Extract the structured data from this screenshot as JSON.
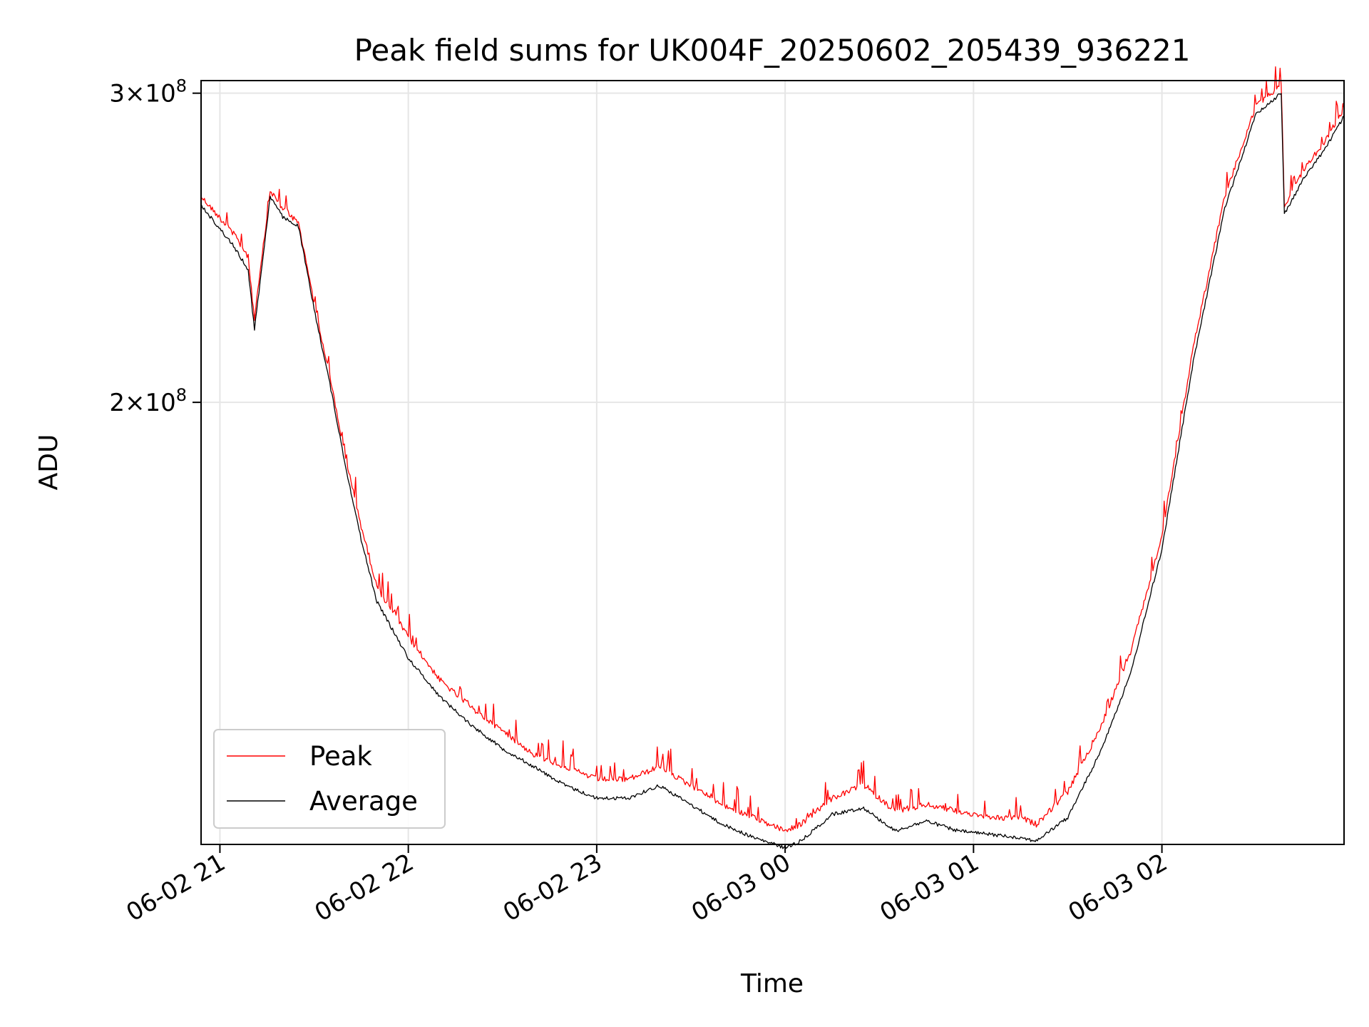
{
  "chart_data": {
    "type": "line",
    "title": "Peak field sums for UK004F_20250602_205439_936221",
    "xlabel": "Time",
    "ylabel": "ADU",
    "x_ticks": [
      "06-02 21",
      "06-02 22",
      "06-02 23",
      "06-03 00",
      "06-03 01",
      "06-03 02"
    ],
    "y_ticks": [
      {
        "value": 200000000,
        "base": "2",
        "exponent": "8"
      },
      {
        "value": 300000000,
        "base": "3",
        "exponent": "8"
      }
    ],
    "y_scale": "log",
    "xlim": [
      "2025-06-02 20:54",
      "2025-06-03 02:58"
    ],
    "ylim": [
      112000000,
      305000000
    ],
    "grid": true,
    "legend_position": "lower-left",
    "series": [
      {
        "name": "Peak",
        "color": "#ff0000",
        "x": [
          "2025-06-02 20:54",
          "2025-06-02 21:04",
          "2025-06-02 21:09",
          "2025-06-02 21:11",
          "2025-06-02 21:16",
          "2025-06-02 21:20",
          "2025-06-02 21:25",
          "2025-06-02 21:30",
          "2025-06-02 21:35",
          "2025-06-02 21:40",
          "2025-06-02 21:45",
          "2025-06-02 21:50",
          "2025-06-02 22:00",
          "2025-06-02 22:10",
          "2025-06-02 22:20",
          "2025-06-02 22:30",
          "2025-06-02 22:40",
          "2025-06-02 22:50",
          "2025-06-02 23:00",
          "2025-06-02 23:10",
          "2025-06-02 23:20",
          "2025-06-02 23:30",
          "2025-06-02 23:40",
          "2025-06-02 23:50",
          "2025-06-03 00:00",
          "2025-06-03 00:05",
          "2025-06-03 00:15",
          "2025-06-03 00:25",
          "2025-06-03 00:35",
          "2025-06-03 00:45",
          "2025-06-03 00:55",
          "2025-06-03 01:05",
          "2025-06-03 01:15",
          "2025-06-03 01:20",
          "2025-06-03 01:30",
          "2025-06-03 01:40",
          "2025-06-03 01:50",
          "2025-06-03 02:00",
          "2025-06-03 02:10",
          "2025-06-03 02:20",
          "2025-06-03 02:30",
          "2025-06-03 02:38",
          "2025-06-03 02:39",
          "2025-06-03 02:45",
          "2025-06-03 02:52",
          "2025-06-03 02:58"
        ],
        "values": [
          262000000,
          250000000,
          242000000,
          223000000,
          264000000,
          258000000,
          253000000,
          228000000,
          207000000,
          186000000,
          170000000,
          157000000,
          147000000,
          139000000,
          134000000,
          130000000,
          126000000,
          124000000,
          122000000,
          122000000,
          124000000,
          121000000,
          118000000,
          116000000,
          114000000,
          115000000,
          119000000,
          121000000,
          117000000,
          118000000,
          117000000,
          116000000,
          116000000,
          115000000,
          120000000,
          130000000,
          144000000,
          168000000,
          215000000,
          262000000,
          295000000,
          303000000,
          259000000,
          271000000,
          282000000,
          294000000
        ]
      },
      {
        "name": "Average",
        "color": "#000000",
        "x": [
          "2025-06-02 20:54",
          "2025-06-02 21:04",
          "2025-06-02 21:09",
          "2025-06-02 21:11",
          "2025-06-02 21:16",
          "2025-06-02 21:20",
          "2025-06-02 21:25",
          "2025-06-02 21:30",
          "2025-06-02 21:35",
          "2025-06-02 21:40",
          "2025-06-02 21:45",
          "2025-06-02 21:50",
          "2025-06-02 22:00",
          "2025-06-02 22:10",
          "2025-06-02 22:20",
          "2025-06-02 22:30",
          "2025-06-02 22:40",
          "2025-06-02 22:50",
          "2025-06-02 23:00",
          "2025-06-02 23:10",
          "2025-06-02 23:20",
          "2025-06-02 23:30",
          "2025-06-02 23:40",
          "2025-06-02 23:50",
          "2025-06-03 00:00",
          "2025-06-03 00:05",
          "2025-06-03 00:15",
          "2025-06-03 00:25",
          "2025-06-03 00:35",
          "2025-06-03 00:45",
          "2025-06-03 00:55",
          "2025-06-03 01:05",
          "2025-06-03 01:15",
          "2025-06-03 01:20",
          "2025-06-03 01:30",
          "2025-06-03 01:40",
          "2025-06-03 01:50",
          "2025-06-03 02:00",
          "2025-06-03 02:10",
          "2025-06-03 02:20",
          "2025-06-03 02:30",
          "2025-06-03 02:38",
          "2025-06-03 02:39",
          "2025-06-03 02:45",
          "2025-06-03 02:52",
          "2025-06-03 02:58"
        ],
        "values": [
          259000000,
          246000000,
          238000000,
          220000000,
          262000000,
          255000000,
          252000000,
          226000000,
          205000000,
          184000000,
          167000000,
          154000000,
          143000000,
          136000000,
          131000000,
          127000000,
          124000000,
          121000000,
          119000000,
          119000000,
          121000000,
          118000000,
          115000000,
          113000000,
          111500000,
          112500000,
          116500000,
          117500000,
          114000000,
          115500000,
          114000000,
          113500000,
          113000000,
          112500000,
          116000000,
          126000000,
          140000000,
          165000000,
          211000000,
          258000000,
          292000000,
          300000000,
          256000000,
          268000000,
          279000000,
          291000000
        ]
      }
    ]
  }
}
